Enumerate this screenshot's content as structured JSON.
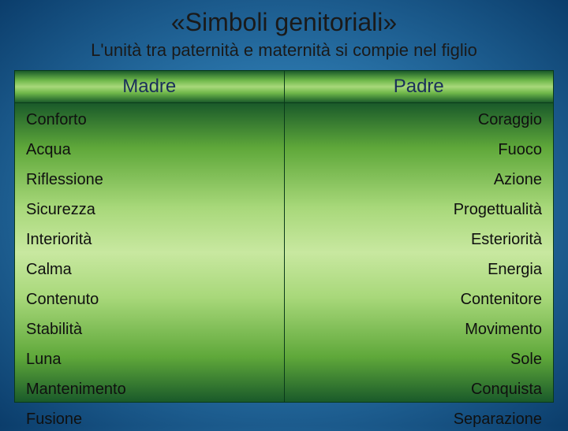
{
  "title": "«Simboli genitoriali»",
  "subtitle": "L'unità tra paternità e maternità si compie nel figlio",
  "columns": {
    "left": {
      "header": "Madre",
      "items": [
        "Conforto",
        "Acqua",
        "Riflessione",
        "Sicurezza",
        "Interiorità",
        "Calma",
        "Contenuto",
        "Stabilità",
        "Luna",
        "Mantenimento",
        "Fusione"
      ]
    },
    "right": {
      "header": "Padre",
      "items": [
        "Coraggio",
        "Fuoco",
        "Azione",
        "Progettualità",
        "Esteriorità",
        "Energia",
        "Contenitore",
        "Movimento",
        "Sole",
        "Conquista",
        "Separazione"
      ]
    }
  },
  "styling": {
    "slide_bg_gradient": [
      "#4a9fd8",
      "#2d7ab0",
      "#0b3d6b"
    ],
    "header_gradient": [
      "#1a5a2a",
      "#6fb84a",
      "#a8d87a",
      "#6fb84a",
      "#1a5a2a"
    ],
    "body_gradient": [
      "#1a5a2a",
      "#5fa83a",
      "#a8d87a",
      "#c8e8a0",
      "#a8d87a",
      "#5fa83a",
      "#1a5a2a"
    ],
    "title_fontsize": 32,
    "subtitle_fontsize": 22,
    "header_fontsize": 24,
    "item_fontsize": 20,
    "title_color": "#1a1a1a",
    "header_text_color": "#1a2f5a",
    "item_text_color": "#101010",
    "border_color": "#0a3a1a"
  }
}
